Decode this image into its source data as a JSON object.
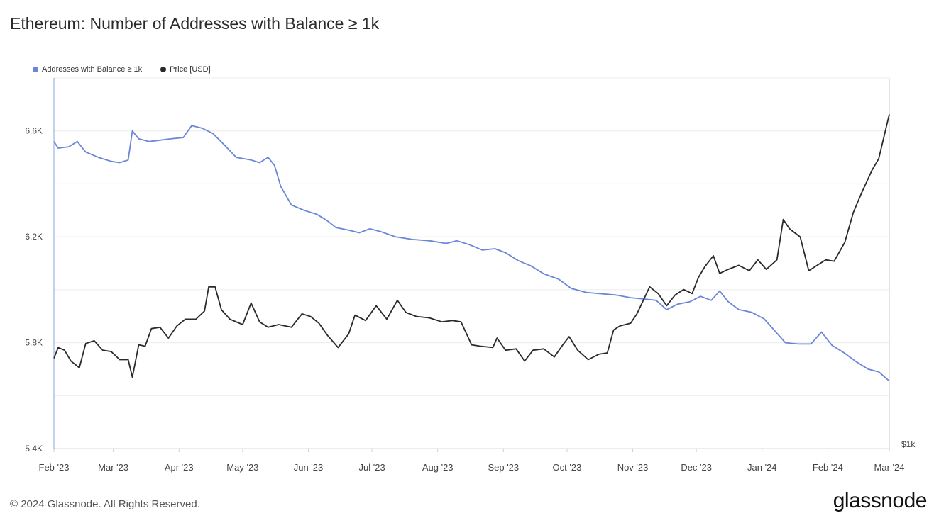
{
  "title": "Ethereum: Number of Addresses with Balance ≥ 1k",
  "footer": "© 2024 Glassnode. All Rights Reserved.",
  "logo": "glassnode",
  "chart_data": {
    "type": "line",
    "grid": true,
    "legend_placement": "top-left",
    "x_start": "2023-02-01",
    "x_end": "2024-03-01",
    "x_ticks": [
      "Feb '23",
      "Mar '23",
      "Apr '23",
      "May '23",
      "Jun '23",
      "Jul '23",
      "Aug '23",
      "Sep '23",
      "Oct '23",
      "Nov '23",
      "Dec '23",
      "Jan '24",
      "Feb '24",
      "Mar '24"
    ],
    "y_left": {
      "ticks": [
        "5.4K",
        "5.8K",
        "6.2K",
        "6.6K"
      ],
      "ylim": [
        5400,
        6800
      ]
    },
    "y_right": {
      "label": "$1k"
    },
    "series": [
      {
        "name": "Addresses with Balance ≥ 1k",
        "color": "#6b86d6",
        "axis": "left",
        "points": [
          [
            "2023-02-01",
            6560
          ],
          [
            "2023-02-03",
            6535
          ],
          [
            "2023-02-08",
            6540
          ],
          [
            "2023-02-12",
            6560
          ],
          [
            "2023-02-16",
            6520
          ],
          [
            "2023-02-22",
            6500
          ],
          [
            "2023-02-28",
            6485
          ],
          [
            "2023-03-04",
            6480
          ],
          [
            "2023-03-08",
            6490
          ],
          [
            "2023-03-10",
            6600
          ],
          [
            "2023-03-13",
            6570
          ],
          [
            "2023-03-18",
            6560
          ],
          [
            "2023-03-23",
            6565
          ],
          [
            "2023-03-28",
            6570
          ],
          [
            "2023-04-03",
            6575
          ],
          [
            "2023-04-07",
            6620
          ],
          [
            "2023-04-12",
            6610
          ],
          [
            "2023-04-17",
            6590
          ],
          [
            "2023-04-22",
            6550
          ],
          [
            "2023-04-28",
            6500
          ],
          [
            "2023-05-05",
            6490
          ],
          [
            "2023-05-09",
            6480
          ],
          [
            "2023-05-13",
            6500
          ],
          [
            "2023-05-16",
            6470
          ],
          [
            "2023-05-19",
            6390
          ],
          [
            "2023-05-24",
            6320
          ],
          [
            "2023-05-30",
            6300
          ],
          [
            "2023-06-05",
            6285
          ],
          [
            "2023-06-10",
            6260
          ],
          [
            "2023-06-14",
            6235
          ],
          [
            "2023-06-20",
            6225
          ],
          [
            "2023-06-25",
            6215
          ],
          [
            "2023-06-30",
            6230
          ],
          [
            "2023-07-05",
            6220
          ],
          [
            "2023-07-12",
            6200
          ],
          [
            "2023-07-20",
            6190
          ],
          [
            "2023-07-28",
            6185
          ],
          [
            "2023-08-05",
            6175
          ],
          [
            "2023-08-10",
            6185
          ],
          [
            "2023-08-16",
            6170
          ],
          [
            "2023-08-22",
            6150
          ],
          [
            "2023-08-28",
            6155
          ],
          [
            "2023-09-02",
            6140
          ],
          [
            "2023-09-08",
            6110
          ],
          [
            "2023-09-14",
            6090
          ],
          [
            "2023-09-20",
            6060
          ],
          [
            "2023-09-27",
            6040
          ],
          [
            "2023-10-03",
            6005
          ],
          [
            "2023-10-10",
            5990
          ],
          [
            "2023-10-17",
            5985
          ],
          [
            "2023-10-24",
            5980
          ],
          [
            "2023-10-31",
            5970
          ],
          [
            "2023-11-06",
            5965
          ],
          [
            "2023-11-12",
            5960
          ],
          [
            "2023-11-17",
            5925
          ],
          [
            "2023-11-22",
            5945
          ],
          [
            "2023-11-28",
            5955
          ],
          [
            "2023-12-03",
            5975
          ],
          [
            "2023-12-08",
            5960
          ],
          [
            "2023-12-12",
            5995
          ],
          [
            "2023-12-16",
            5955
          ],
          [
            "2023-12-21",
            5925
          ],
          [
            "2023-12-27",
            5915
          ],
          [
            "2024-01-02",
            5890
          ],
          [
            "2024-01-07",
            5845
          ],
          [
            "2024-01-12",
            5800
          ],
          [
            "2024-01-18",
            5795
          ],
          [
            "2024-01-24",
            5795
          ],
          [
            "2024-01-29",
            5840
          ],
          [
            "2024-02-03",
            5790
          ],
          [
            "2024-02-09",
            5760
          ],
          [
            "2024-02-14",
            5730
          ],
          [
            "2024-02-20",
            5700
          ],
          [
            "2024-02-25",
            5690
          ],
          [
            "2024-03-01",
            5655
          ]
        ]
      },
      {
        "name": "Price [USD]",
        "color": "#2a2a2a",
        "axis": "right",
        "points": [
          [
            "2023-02-01",
            1.57
          ],
          [
            "2023-02-03",
            1.65
          ],
          [
            "2023-02-06",
            1.63
          ],
          [
            "2023-02-09",
            1.55
          ],
          [
            "2023-02-13",
            1.5
          ],
          [
            "2023-02-16",
            1.68
          ],
          [
            "2023-02-20",
            1.7
          ],
          [
            "2023-02-24",
            1.63
          ],
          [
            "2023-02-28",
            1.62
          ],
          [
            "2023-03-04",
            1.56
          ],
          [
            "2023-03-08",
            1.56
          ],
          [
            "2023-03-10",
            1.43
          ],
          [
            "2023-03-13",
            1.67
          ],
          [
            "2023-03-16",
            1.66
          ],
          [
            "2023-03-19",
            1.79
          ],
          [
            "2023-03-23",
            1.8
          ],
          [
            "2023-03-27",
            1.72
          ],
          [
            "2023-03-31",
            1.81
          ],
          [
            "2023-04-04",
            1.86
          ],
          [
            "2023-04-09",
            1.86
          ],
          [
            "2023-04-13",
            1.92
          ],
          [
            "2023-04-15",
            2.1
          ],
          [
            "2023-04-18",
            2.1
          ],
          [
            "2023-04-21",
            1.93
          ],
          [
            "2023-04-25",
            1.86
          ],
          [
            "2023-05-01",
            1.82
          ],
          [
            "2023-05-05",
            1.98
          ],
          [
            "2023-05-09",
            1.84
          ],
          [
            "2023-05-13",
            1.8
          ],
          [
            "2023-05-18",
            1.82
          ],
          [
            "2023-05-24",
            1.8
          ],
          [
            "2023-05-29",
            1.9
          ],
          [
            "2023-06-02",
            1.88
          ],
          [
            "2023-06-06",
            1.83
          ],
          [
            "2023-06-10",
            1.74
          ],
          [
            "2023-06-15",
            1.65
          ],
          [
            "2023-06-20",
            1.75
          ],
          [
            "2023-06-23",
            1.89
          ],
          [
            "2023-06-28",
            1.85
          ],
          [
            "2023-07-03",
            1.96
          ],
          [
            "2023-07-08",
            1.86
          ],
          [
            "2023-07-13",
            2.0
          ],
          [
            "2023-07-17",
            1.91
          ],
          [
            "2023-07-22",
            1.88
          ],
          [
            "2023-07-28",
            1.87
          ],
          [
            "2023-08-03",
            1.84
          ],
          [
            "2023-08-08",
            1.85
          ],
          [
            "2023-08-12",
            1.84
          ],
          [
            "2023-08-17",
            1.67
          ],
          [
            "2023-08-21",
            1.66
          ],
          [
            "2023-08-27",
            1.65
          ],
          [
            "2023-08-29",
            1.72
          ],
          [
            "2023-09-02",
            1.63
          ],
          [
            "2023-09-07",
            1.64
          ],
          [
            "2023-09-11",
            1.55
          ],
          [
            "2023-09-15",
            1.63
          ],
          [
            "2023-09-20",
            1.64
          ],
          [
            "2023-09-25",
            1.58
          ],
          [
            "2023-09-29",
            1.67
          ],
          [
            "2023-10-02",
            1.73
          ],
          [
            "2023-10-06",
            1.63
          ],
          [
            "2023-10-11",
            1.56
          ],
          [
            "2023-10-16",
            1.6
          ],
          [
            "2023-10-20",
            1.61
          ],
          [
            "2023-10-23",
            1.78
          ],
          [
            "2023-10-26",
            1.81
          ],
          [
            "2023-10-31",
            1.83
          ],
          [
            "2023-11-03",
            1.9
          ],
          [
            "2023-11-09",
            2.1
          ],
          [
            "2023-11-13",
            2.05
          ],
          [
            "2023-11-17",
            1.96
          ],
          [
            "2023-11-21",
            2.04
          ],
          [
            "2023-11-25",
            2.08
          ],
          [
            "2023-11-29",
            2.05
          ],
          [
            "2023-12-02",
            2.17
          ],
          [
            "2023-12-05",
            2.25
          ],
          [
            "2023-12-09",
            2.33
          ],
          [
            "2023-12-12",
            2.2
          ],
          [
            "2023-12-16",
            2.23
          ],
          [
            "2023-12-21",
            2.26
          ],
          [
            "2023-12-26",
            2.22
          ],
          [
            "2023-12-30",
            2.3
          ],
          [
            "2024-01-03",
            2.23
          ],
          [
            "2024-01-08",
            2.3
          ],
          [
            "2024-01-11",
            2.6
          ],
          [
            "2024-01-14",
            2.53
          ],
          [
            "2024-01-19",
            2.47
          ],
          [
            "2024-01-23",
            2.22
          ],
          [
            "2024-01-27",
            2.26
          ],
          [
            "2024-01-31",
            2.3
          ],
          [
            "2024-02-04",
            2.29
          ],
          [
            "2024-02-09",
            2.43
          ],
          [
            "2024-02-13",
            2.65
          ],
          [
            "2024-02-17",
            2.8
          ],
          [
            "2024-02-22",
            2.97
          ],
          [
            "2024-02-25",
            3.05
          ],
          [
            "2024-03-01",
            3.38
          ]
        ]
      }
    ]
  }
}
